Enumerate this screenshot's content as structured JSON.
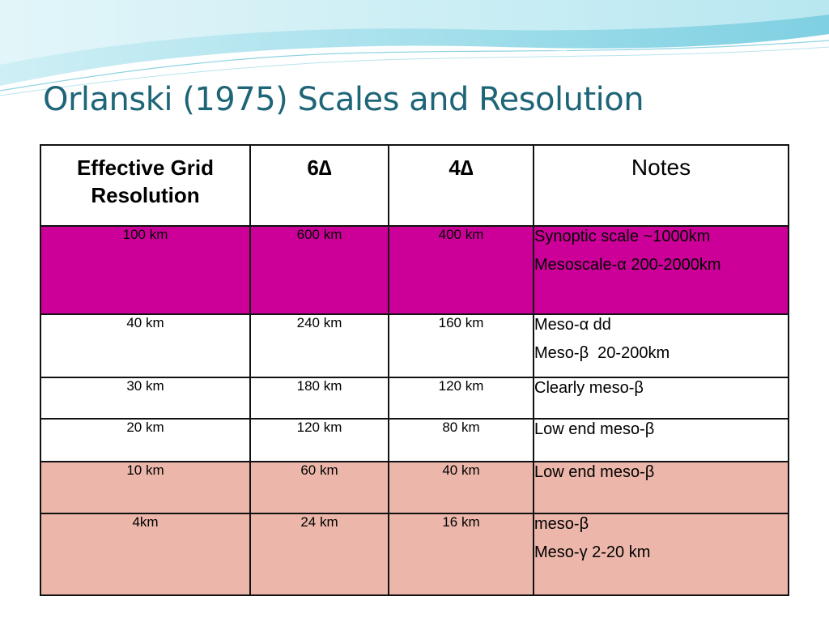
{
  "slide": {
    "title": "Orlanski (1975) Scales and Resolution"
  },
  "table": {
    "headers": {
      "col1": "Effective Grid Resolution",
      "col2": "6∆",
      "col3": "4∆",
      "col4": "Notes"
    },
    "rows": [
      {
        "res": "100 km",
        "six": "600 km",
        "four": "400 km",
        "notes": [
          "Synoptic scale ~1000km",
          "Mesoscale-α 200-2000km"
        ],
        "color": "#cc0099"
      },
      {
        "res": "40 km",
        "six": "240 km",
        "four": "160 km",
        "notes": [
          "Meso-α dd",
          "Meso-β  20-200km"
        ],
        "color": "#ffffff"
      },
      {
        "res": "30 km",
        "six": "180 km",
        "four": "120 km",
        "notes": [
          "Clearly meso-β"
        ],
        "color": "#ffffff"
      },
      {
        "res": "20 km",
        "six": "120 km",
        "four": "80 km",
        "notes": [
          "Low end meso-β"
        ],
        "color": "#ffffff"
      },
      {
        "res": "10 km",
        "six": "60 km",
        "four": "40 km",
        "notes": [
          "Low end meso-β"
        ],
        "color": "#ecb7aa"
      },
      {
        "res": "4km",
        "six": "24 km",
        "four": "16 km",
        "notes": [
          "meso-β",
          "Meso-γ 2-20 km"
        ],
        "color": "#ecb7aa"
      }
    ]
  },
  "colors": {
    "title": "#1e6578",
    "highlight_magenta": "#cc0099",
    "highlight_pink": "#ecb7aa",
    "border": "#111111",
    "wave_light": "#bfe7ef",
    "wave_mid": "#7fcfdf"
  }
}
